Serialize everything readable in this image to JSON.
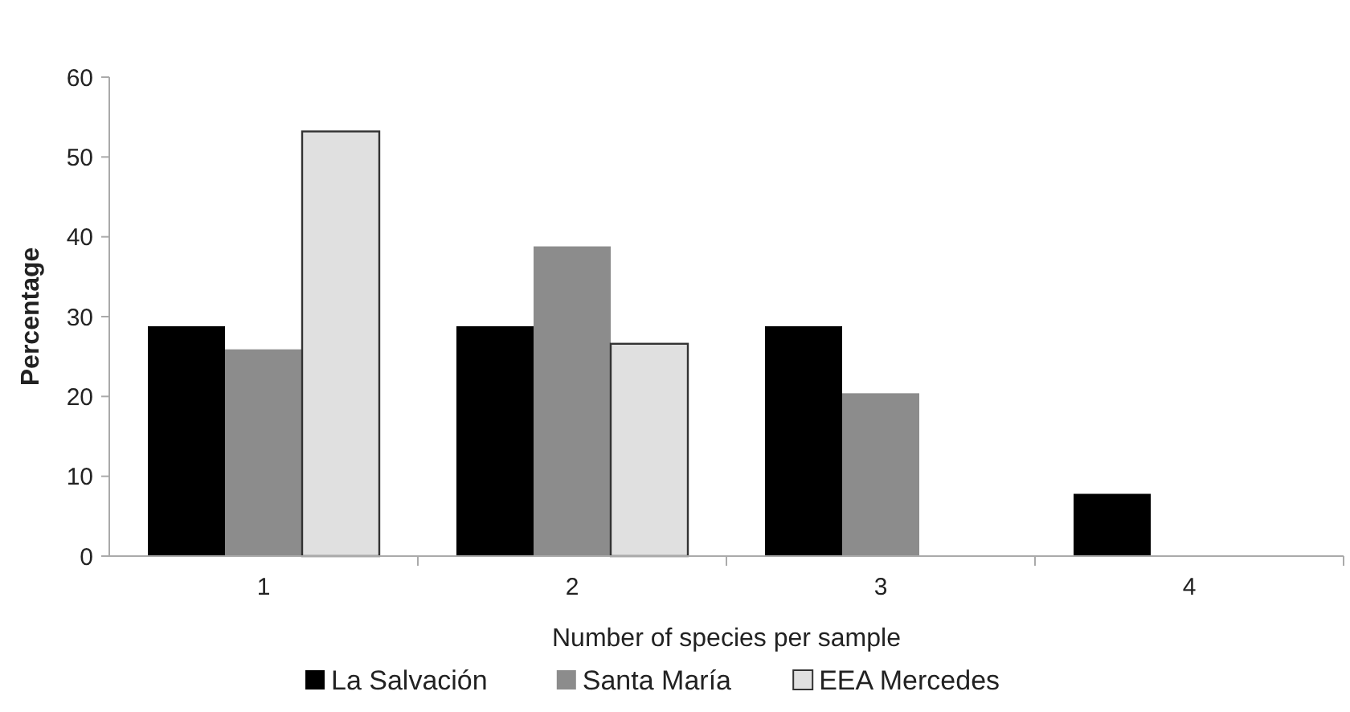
{
  "chart_data": {
    "type": "bar",
    "xlabel": "Number of species per sample",
    "ylabel": "Percentage",
    "categories": [
      "1",
      "2",
      "3",
      "4"
    ],
    "series": [
      {
        "name": "La Salvación",
        "color": "#000000",
        "values": [
          28.8,
          28.8,
          28.8,
          7.8
        ]
      },
      {
        "name": "Santa María",
        "color": "#8c8c8c",
        "values": [
          25.9,
          38.8,
          20.4,
          0
        ]
      },
      {
        "name": "EEA Mercedes",
        "color": "#e0e0e0",
        "values": [
          53.2,
          26.6,
          0,
          0
        ]
      }
    ],
    "ylim": [
      0,
      60
    ],
    "yticks": [
      0,
      10,
      20,
      30,
      40,
      50,
      60
    ],
    "grid": false,
    "legend": "bottom"
  }
}
